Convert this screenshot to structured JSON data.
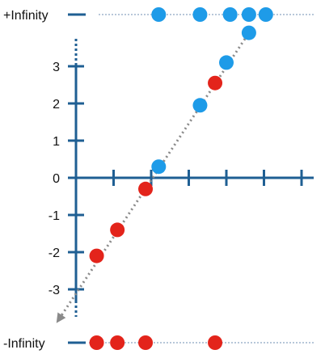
{
  "colors": {
    "axis": "#1f5f93",
    "dotted_axis": "#6f8fb3",
    "blue_point": "#1e9be8",
    "red_point": "#e3241b",
    "arrow": "#8a8a8a"
  },
  "labels": {
    "pos_infinity": "+Infinity",
    "neg_infinity": "-Infinity"
  },
  "y_ticks": [
    {
      "value": 3,
      "label": "3"
    },
    {
      "value": 2,
      "label": "2"
    },
    {
      "value": 1,
      "label": "1"
    },
    {
      "value": 0,
      "label": "0"
    },
    {
      "value": -1,
      "label": "-1"
    },
    {
      "value": -2,
      "label": "-2"
    },
    {
      "value": -3,
      "label": "-3"
    }
  ],
  "x_tick_count": 6,
  "chart_data": {
    "type": "scatter",
    "xlabel": "",
    "ylabel": "",
    "ylim": [
      -3.8,
      3.8
    ],
    "x_ticks": [
      0,
      1,
      2,
      3,
      4,
      5,
      6
    ],
    "blue_points": [
      {
        "x": 2.2,
        "y": 0.3
      },
      {
        "x": 3.3,
        "y": 1.95
      },
      {
        "x": 4.0,
        "y": 3.1
      },
      {
        "x": 4.6,
        "y": 3.9
      }
    ],
    "red_points": [
      {
        "x": 0.55,
        "y": -2.1
      },
      {
        "x": 1.1,
        "y": -1.4
      },
      {
        "x": 1.85,
        "y": -0.3
      },
      {
        "x": 3.7,
        "y": 2.55
      }
    ],
    "pos_infinity_points_x": [
      2.2,
      3.3,
      4.1,
      4.6,
      5.05
    ],
    "neg_infinity_points_x": [
      0.55,
      1.1,
      1.85,
      3.7
    ],
    "trend_arrow": {
      "from": {
        "x": -0.45,
        "y": -3.8
      },
      "to": {
        "x": 4.6,
        "y": 3.9
      }
    }
  }
}
